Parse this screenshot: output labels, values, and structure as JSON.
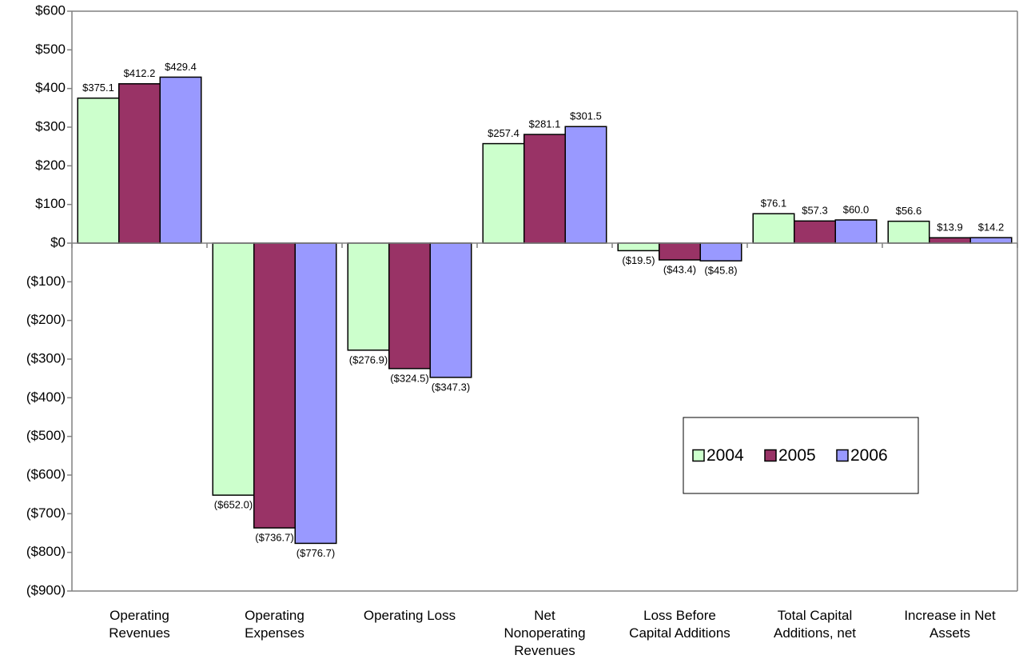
{
  "chart_data": {
    "type": "bar",
    "categories": [
      "Operating\nRevenues",
      "Operating\nExpenses",
      "Operating Loss",
      "Net\nNonoperating\nRevenues",
      "Loss Before\nCapital Additions",
      "Total Capital\nAdditions, net",
      "Increase in Net\nAssets"
    ],
    "series": [
      {
        "name": "2004",
        "color": "#ccffcc",
        "values": [
          375.1,
          -652.0,
          -276.9,
          257.4,
          -19.5,
          76.1,
          56.6
        ],
        "value_labels": [
          "$375.1",
          "($652.0)",
          "($276.9)",
          "$257.4",
          "($19.5)",
          "$76.1",
          "$56.6"
        ]
      },
      {
        "name": "2005",
        "color": "#993366",
        "values": [
          412.2,
          -736.7,
          -324.5,
          281.1,
          -43.4,
          57.3,
          13.9
        ],
        "value_labels": [
          "$412.2",
          "($736.7)",
          "($324.5)",
          "$281.1",
          "($43.4)",
          "$57.3",
          "$13.9"
        ]
      },
      {
        "name": "2006",
        "color": "#9999ff",
        "values": [
          429.4,
          -776.7,
          -347.3,
          301.5,
          -45.8,
          60.0,
          14.2
        ],
        "value_labels": [
          "$429.4",
          "($776.7)",
          "($347.3)",
          "$301.5",
          "($45.8)",
          "$60.0",
          "$14.2"
        ]
      }
    ],
    "ylim": [
      -900,
      600
    ],
    "yticks": [
      {
        "value": 600,
        "label": "$600"
      },
      {
        "value": 500,
        "label": "$500"
      },
      {
        "value": 400,
        "label": "$400"
      },
      {
        "value": 300,
        "label": "$300"
      },
      {
        "value": 200,
        "label": "$200"
      },
      {
        "value": 100,
        "label": "$100"
      },
      {
        "value": 0,
        "label": "$0"
      },
      {
        "value": -100,
        "label": "($100)"
      },
      {
        "value": -200,
        "label": "($200)"
      },
      {
        "value": -300,
        "label": "($300)"
      },
      {
        "value": -400,
        "label": "($400)"
      },
      {
        "value": -500,
        "label": "($500)"
      },
      {
        "value": -600,
        "label": "($600)"
      },
      {
        "value": -700,
        "label": "($700)"
      },
      {
        "value": -800,
        "label": "($800)"
      },
      {
        "value": -900,
        "label": "($900)"
      }
    ],
    "grid": false
  }
}
